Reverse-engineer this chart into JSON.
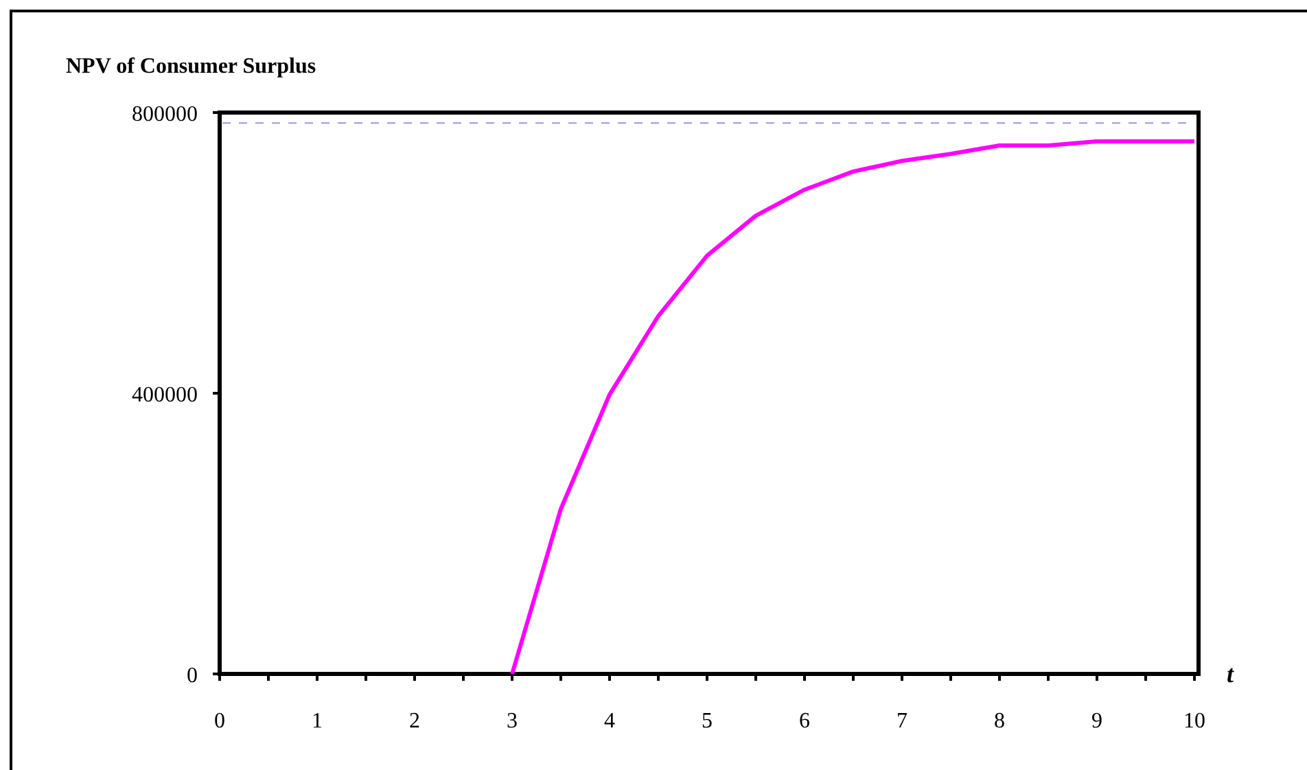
{
  "chart_data": {
    "type": "line",
    "title": "NPV of Consumer Surplus",
    "xlabel": "t",
    "x": [
      3,
      3.5,
      4,
      4.5,
      5,
      5.5,
      6,
      6.5,
      7,
      7.5,
      8,
      8.5,
      9,
      9.5,
      10
    ],
    "series": [
      {
        "color": "#ff00ff",
        "values": [
          0,
          235000,
          398000,
          510000,
          596000,
          653000,
          690000,
          716000,
          731000,
          741000,
          753000,
          753000,
          759000,
          759000,
          759000
        ]
      }
    ],
    "xlim": [
      0,
      10
    ],
    "xticks": [
      0,
      {
        "value": 0.5,
        "label": null
      },
      1,
      {
        "value": 1.5,
        "label": null
      },
      2,
      {
        "value": 2.5,
        "label": null
      },
      3,
      {
        "value": 3.5,
        "label": null
      },
      4,
      {
        "value": 4.5,
        "label": null
      },
      5,
      {
        "value": 5.5,
        "label": null
      },
      6,
      {
        "value": 6.5,
        "label": null
      },
      7,
      {
        "value": 7.5,
        "label": null
      },
      8,
      {
        "value": 8.5,
        "label": null
      },
      9,
      {
        "value": 9.5,
        "label": null
      },
      10
    ],
    "ylim": [
      0,
      800000
    ],
    "yticks": [
      0,
      400000,
      800000
    ],
    "ref_lines": [
      {
        "axis": "y",
        "value": 785000,
        "color": "#9999dd",
        "line_style": "dashed"
      }
    ],
    "grid": false,
    "marker": "none",
    "line_style": "solid"
  }
}
